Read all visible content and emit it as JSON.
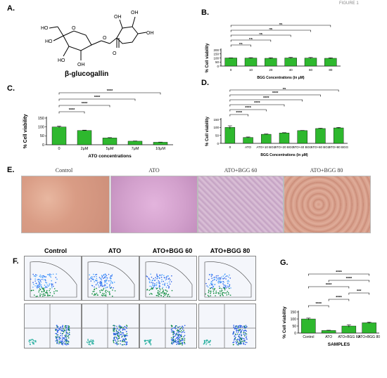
{
  "figure_tag": "FIGURE 1",
  "panelA": {
    "label": "A.",
    "compound": "β-glucogallin"
  },
  "panelE": {
    "label": "E.",
    "titles": [
      "Control",
      "ATO",
      "ATO+BGG 60",
      "ATO+BGG 80"
    ]
  },
  "panelF": {
    "label": "F.",
    "titles": [
      "Control",
      "ATO",
      "ATO+BGG 60",
      "ATO+BGG 80"
    ]
  },
  "colors": {
    "bar": "#2eb82e",
    "axis": "#000000"
  },
  "chart_data": [
    {
      "id": "B",
      "label": "B.",
      "type": "bar",
      "categories": [
        "0",
        "10",
        "20",
        "40",
        "60",
        "80"
      ],
      "values": [
        100,
        99,
        96,
        100,
        99,
        96
      ],
      "errors": [
        2,
        5,
        7,
        8,
        7,
        6
      ],
      "ylabel": "% Cell viability",
      "xlabel": "BGG Concentrations (in μM)",
      "yticks": [
        "0",
        "50",
        "100",
        "150",
        "200"
      ],
      "ylim": [
        0,
        200
      ],
      "brackets": [
        {
          "from": 0,
          "to": 1,
          "label": "ns"
        },
        {
          "from": 0,
          "to": 2,
          "label": "ns"
        },
        {
          "from": 0,
          "to": 3,
          "label": "ns"
        },
        {
          "from": 0,
          "to": 4,
          "label": "ns"
        },
        {
          "from": 0,
          "to": 5,
          "label": "ns"
        }
      ]
    },
    {
      "id": "C",
      "label": "C.",
      "type": "bar",
      "categories": [
        "0",
        "2μM",
        "5μM",
        "7μM",
        "10μM"
      ],
      "values": [
        100,
        80,
        38,
        20,
        14
      ],
      "errors": [
        5,
        2,
        2,
        1,
        1
      ],
      "ylabel": "% Cell viability",
      "xlabel": "ATO concentrations",
      "yticks": [
        "0",
        "50",
        "100",
        "150"
      ],
      "ylim": [
        0,
        150
      ],
      "brackets": [
        {
          "from": 0,
          "to": 1,
          "label": "****"
        },
        {
          "from": 0,
          "to": 2,
          "label": "****"
        },
        {
          "from": 0,
          "to": 3,
          "label": "****"
        },
        {
          "from": 0,
          "to": 4,
          "label": "****"
        }
      ]
    },
    {
      "id": "D",
      "label": "D.",
      "type": "bar",
      "categories": [
        "0",
        "ATO",
        "ATO+10 BGG",
        "ATO+20 BGG",
        "ATO+40 BGG",
        "ATO+60 BGG",
        "ATO+80 BGG"
      ],
      "values": [
        100,
        37,
        57,
        65,
        80,
        93,
        97
      ],
      "errors": [
        10,
        3,
        2,
        2,
        1,
        2,
        3
      ],
      "ylabel": "% Cell viability",
      "xlabel": "BGG Concentrations (in μM)",
      "yticks": [
        "0",
        "50",
        "100",
        "150"
      ],
      "ylim": [
        0,
        150
      ],
      "brackets": [
        {
          "from": 0,
          "to": 1,
          "label": "****"
        },
        {
          "from": 0,
          "to": 2,
          "label": "****"
        },
        {
          "from": 0,
          "to": 3,
          "label": "****"
        },
        {
          "from": 0,
          "to": 4,
          "label": "****"
        },
        {
          "from": 0,
          "to": 5,
          "label": "****"
        },
        {
          "from": 0,
          "to": 6,
          "label": "ns"
        }
      ]
    },
    {
      "id": "G",
      "label": "G.",
      "type": "bar",
      "categories": [
        "Control",
        "ATO",
        "ATO+BGG 60",
        "ATO+BGG 80"
      ],
      "values": [
        100,
        18,
        50,
        73
      ],
      "errors": [
        6,
        2,
        9,
        5
      ],
      "ylabel": "% Cell viability",
      "xlabel": "SAMPLES",
      "yticks": [
        "0",
        "50",
        "100",
        "150"
      ],
      "ylim": [
        0,
        150
      ],
      "brackets": [
        {
          "from": 0,
          "to": 1,
          "label": "****"
        },
        {
          "from": 1,
          "to": 2,
          "label": "****"
        },
        {
          "from": 2,
          "to": 3,
          "label": "***"
        },
        {
          "from": 0,
          "to": 2,
          "label": "****"
        },
        {
          "from": 1,
          "to": 3,
          "label": "****"
        },
        {
          "from": 0,
          "to": 3,
          "label": "****"
        }
      ]
    }
  ]
}
